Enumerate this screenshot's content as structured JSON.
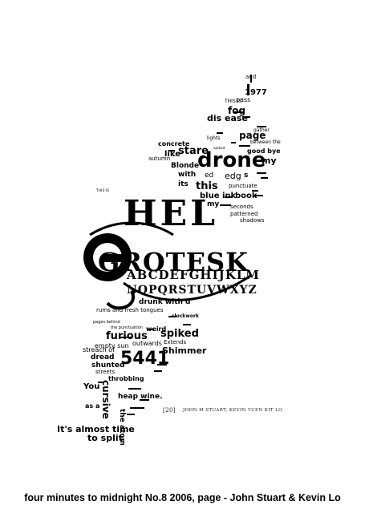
{
  "poster": {
    "words_top": [
      "and",
      "1977",
      "pass",
      "fog",
      "dis ease",
      "page",
      "between the",
      "concrete",
      "stare",
      "good bye",
      "drone",
      "my",
      "autumn",
      "Blonde",
      "with",
      "ed",
      "edg",
      "s",
      "its",
      "this",
      "punctuate",
      "blue ink",
      "book",
      "my",
      "seconds",
      "patterned",
      "shadows",
      "spiked",
      "gather",
      "lights",
      "THIS IS"
    ],
    "title_line1": "HEL",
    "title_line2": "GROTESK",
    "alphabet_line1": "ABCDEFGHIJKLM",
    "alphabet_line2": "NOPQRSTUVWXYZ",
    "words_bottom": [
      "drunk with d",
      "rums and fresh tongues",
      "clockwork",
      "furious",
      "spiked",
      "weird",
      "outwards",
      "Extends",
      "empty sun",
      "Shimmer",
      "5441",
      "dread",
      "shunted",
      "streets",
      "throbbing",
      "cursive",
      "heap wine.",
      "as a",
      "It's almost time",
      "to split",
      "the atom",
      "pages behind",
      "the punctuation"
    ],
    "folio_page": "[20]",
    "folio_credit": "JOHN M STUART, KEVIN YUEN KIT LO"
  },
  "caption": "four minutes to midnight No.8 2006, page - John Stuart & Kevin Lo"
}
